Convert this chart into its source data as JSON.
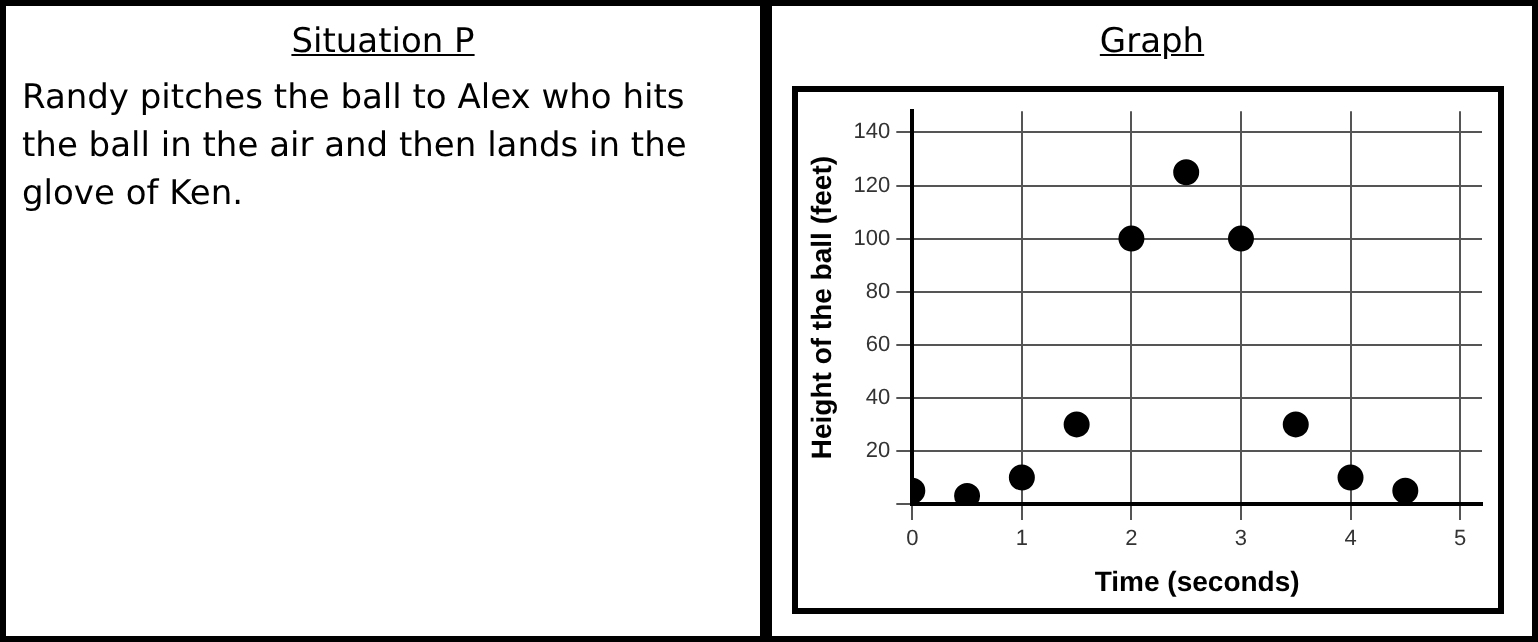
{
  "chart_data": [
    {
      "type": "other",
      "title": "Situation P",
      "annotations": [
        "Randy pitches the ball to Alex who hits the ball in the air and then lands in the glove of Ken."
      ]
    },
    {
      "type": "scatter",
      "title": "Graph",
      "xlabel": "Time (seconds)",
      "ylabel": "Height of the ball (feet)",
      "color": "#000000",
      "marker": "circle",
      "grid": true,
      "legend": false,
      "x": [
        0,
        0.5,
        1,
        1.5,
        2,
        2.5,
        3,
        3.5,
        4,
        4.5
      ],
      "values": [
        5,
        3,
        10,
        30,
        100,
        125,
        100,
        30,
        10,
        5
      ],
      "xlim": [
        0,
        5.2
      ],
      "xticks": [
        0,
        1,
        2,
        3,
        4,
        5
      ],
      "ylim": [
        0,
        148
      ],
      "yticks": [
        {
          "value": 0,
          "label": null
        },
        20,
        40,
        60,
        80,
        100,
        120,
        140
      ]
    }
  ]
}
